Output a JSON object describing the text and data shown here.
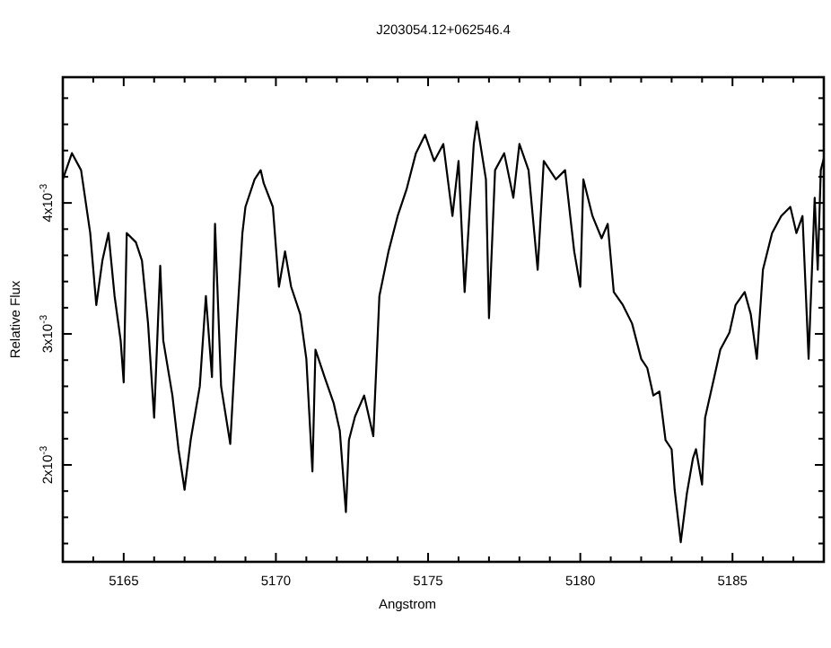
{
  "chart_data": {
    "type": "line",
    "title": "J203054.12+062546.4",
    "xlabel": "Angstrom",
    "ylabel": "Relative Flux",
    "x": [
      5163.0,
      5163.3,
      5163.6,
      5163.9,
      5164.1,
      5164.3,
      5164.5,
      5164.7,
      5164.9,
      5165.0,
      5165.1,
      5165.4,
      5165.6,
      5165.8,
      5166.0,
      5166.2,
      5166.3,
      5166.6,
      5166.8,
      5167.0,
      5167.2,
      5167.5,
      5167.7,
      5167.9,
      5168.0,
      5168.2,
      5168.5,
      5168.7,
      5168.9,
      5169.0,
      5169.3,
      5169.5,
      5169.6,
      5169.9,
      5170.1,
      5170.3,
      5170.5,
      5170.8,
      5171.0,
      5171.2,
      5171.3,
      5171.6,
      5171.9,
      5172.1,
      5172.3,
      5172.4,
      5172.6,
      5172.9,
      5173.2,
      5173.4,
      5173.7,
      5174.0,
      5174.3,
      5174.6,
      5174.9,
      5175.2,
      5175.5,
      5175.8,
      5176.0,
      5176.2,
      5176.5,
      5176.6,
      5176.9,
      5177.0,
      5177.2,
      5177.5,
      5177.8,
      5178.0,
      5178.3,
      5178.6,
      5178.8,
      5179.2,
      5179.5,
      5179.8,
      5180.0,
      5180.1,
      5180.4,
      5180.7,
      5180.9,
      5181.1,
      5181.4,
      5181.7,
      5182.0,
      5182.2,
      5182.4,
      5182.6,
      5182.8,
      5183.0,
      5183.1,
      5183.3,
      5183.5,
      5183.7,
      5183.8,
      5184.0,
      5184.1,
      5184.4,
      5184.6,
      5184.9,
      5185.1,
      5185.4,
      5185.6,
      5185.8,
      5186.0,
      5186.3,
      5186.6,
      5186.9,
      5187.1,
      5187.3,
      5187.4,
      5187.5,
      5187.7,
      5187.8,
      5187.9,
      5188.0
    ],
    "series": [
      {
        "color": "#000000",
        "values": [
          0.00418,
          0.00438,
          0.00425,
          0.00377,
          0.00322,
          0.00356,
          0.00377,
          0.00329,
          0.00295,
          0.00263,
          0.00377,
          0.0037,
          0.00356,
          0.00308,
          0.00236,
          0.00352,
          0.00295,
          0.00253,
          0.00212,
          0.00181,
          0.00219,
          0.0026,
          0.00329,
          0.00267,
          0.00384,
          0.0026,
          0.00216,
          0.00301,
          0.00377,
          0.00397,
          0.00418,
          0.00425,
          0.00415,
          0.00397,
          0.00336,
          0.00363,
          0.00336,
          0.00315,
          0.00281,
          0.00195,
          0.00288,
          0.00267,
          0.00247,
          0.00226,
          0.00164,
          0.00219,
          0.00237,
          0.00253,
          0.00222,
          0.00329,
          0.00363,
          0.0039,
          0.00411,
          0.00438,
          0.00452,
          0.00432,
          0.00445,
          0.0039,
          0.00432,
          0.00332,
          0.00445,
          0.00462,
          0.00418,
          0.00312,
          0.00425,
          0.00438,
          0.00404,
          0.00445,
          0.00425,
          0.00349,
          0.00432,
          0.00418,
          0.00425,
          0.00363,
          0.00336,
          0.00418,
          0.0039,
          0.00373,
          0.00384,
          0.00332,
          0.00322,
          0.00308,
          0.00281,
          0.00274,
          0.00253,
          0.00256,
          0.00219,
          0.00212,
          0.00181,
          0.00141,
          0.00178,
          0.00205,
          0.00212,
          0.00185,
          0.00236,
          0.00267,
          0.00288,
          0.00301,
          0.00322,
          0.00332,
          0.00315,
          0.00281,
          0.00349,
          0.00377,
          0.0039,
          0.00397,
          0.00377,
          0.0039,
          0.00336,
          0.00281,
          0.00404,
          0.00349,
          0.00425,
          0.00434
        ]
      }
    ],
    "xlim": [
      5163,
      5188
    ],
    "ylim": [
      0.00126,
      0.00496
    ],
    "xticks": [
      {
        "value": 5164,
        "label": null
      },
      5165,
      {
        "value": 5166,
        "label": null
      },
      {
        "value": 5167,
        "label": null
      },
      {
        "value": 5168,
        "label": null
      },
      {
        "value": 5169,
        "label": null
      },
      5170,
      {
        "value": 5171,
        "label": null
      },
      {
        "value": 5172,
        "label": null
      },
      {
        "value": 5173,
        "label": null
      },
      {
        "value": 5174,
        "label": null
      },
      5175,
      {
        "value": 5176,
        "label": null
      },
      {
        "value": 5177,
        "label": null
      },
      {
        "value": 5178,
        "label": null
      },
      {
        "value": 5179,
        "label": null
      },
      5180,
      {
        "value": 5181,
        "label": null
      },
      {
        "value": 5182,
        "label": null
      },
      {
        "value": 5183,
        "label": null
      },
      {
        "value": 5184,
        "label": null
      },
      5185,
      {
        "value": 5186,
        "label": null
      },
      {
        "value": 5187,
        "label": null
      }
    ],
    "yticks": [
      {
        "value": 0.0014,
        "label": null
      },
      {
        "value": 0.0016,
        "label": null
      },
      {
        "value": 0.0018,
        "label": null
      },
      {
        "value": 0.002,
        "label": "2x10$^{-3}$"
      },
      {
        "value": 0.0022,
        "label": null
      },
      {
        "value": 0.0024,
        "label": null
      },
      {
        "value": 0.0026,
        "label": null
      },
      {
        "value": 0.0028,
        "label": null
      },
      {
        "value": 0.003,
        "label": "3x10$^{-3}$"
      },
      {
        "value": 0.0032,
        "label": null
      },
      {
        "value": 0.0034,
        "label": null
      },
      {
        "value": 0.0036,
        "label": null
      },
      {
        "value": 0.0038,
        "label": null
      },
      {
        "value": 0.004,
        "label": "4x10$^{-3}$"
      },
      {
        "value": 0.0042,
        "label": null
      },
      {
        "value": 0.0044,
        "label": null
      },
      {
        "value": 0.0046,
        "label": null
      },
      {
        "value": 0.0048,
        "label": null
      }
    ],
    "grid": false,
    "line_style": "solid"
  }
}
